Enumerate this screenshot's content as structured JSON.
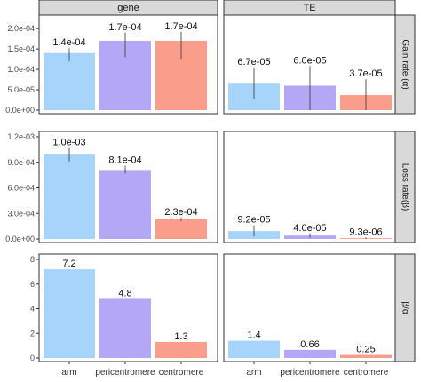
{
  "chart_data": {
    "type": "bar",
    "layout": "facet-grid",
    "columns": [
      "gene",
      "TE"
    ],
    "categories": [
      "arm",
      "pericentromere",
      "centromere"
    ],
    "colors": {
      "arm": "#a6d4fa",
      "pericentromere": "#b4a7f6",
      "centromere": "#fb9d8b"
    },
    "panel_background": "#ffffff",
    "strip_fill": "#d9d9d9",
    "grid": false,
    "legend": "none",
    "rows": [
      {
        "strip_label": "Gain rate (α)",
        "ylim": [
          0,
          0.00022
        ],
        "ticks": [
          0,
          5e-05,
          0.0001,
          0.00015,
          0.0002
        ],
        "tick_labels": [
          "0.0e+00",
          "5.0e-05",
          "1.0e-04",
          "1.5e-04",
          "2.0e-04"
        ],
        "series": [
          {
            "name": "gene",
            "values": [
              0.00014,
              0.00017,
              0.00017
            ],
            "error_low": [
              0.00012,
              0.00013,
              0.000126
            ],
            "error_high": [
              0.000152,
              0.00019,
              0.000192
            ],
            "labels": [
              "1.4e-04",
              "1.7e-04",
              "1.7e-04"
            ]
          },
          {
            "name": "TE",
            "values": [
              6.7e-05,
              6e-05,
              3.7e-05
            ],
            "error_low": [
              2.8e-05,
              0.0,
              0.0
            ],
            "error_high": [
              0.000105,
              0.000108,
              7.6e-05
            ],
            "labels": [
              "6.7e-05",
              "6.0e-05",
              "3.7e-05"
            ]
          }
        ]
      },
      {
        "strip_label": "Loss rate(β)",
        "ylim": [
          0,
          0.0012
        ],
        "ticks": [
          0,
          0.0003,
          0.0006,
          0.0009,
          0.0012
        ],
        "tick_labels": [
          "0.0e+00",
          "3.0e-04",
          "6.0e-04",
          "9.0e-04",
          "1.2e-03"
        ],
        "series": [
          {
            "name": "gene",
            "values": [
              0.001,
              0.00081,
              0.00023
            ],
            "error_low": [
              0.00091,
              0.00077,
              0.00021
            ],
            "error_high": [
              0.00107,
              0.00086,
              0.00025
            ],
            "labels": [
              "1.0e-03",
              "8.1e-04",
              "2.3e-04"
            ]
          },
          {
            "name": "TE",
            "values": [
              9.2e-05,
              4e-05,
              9.3e-06
            ],
            "error_low": [
              3e-05,
              1.5e-05,
              0.0
            ],
            "error_high": [
              0.00016,
              6.5e-05,
              1.8e-05
            ],
            "labels": [
              "9.2e-05",
              "4.0e-05",
              "9.3e-06"
            ]
          }
        ]
      },
      {
        "strip_label": "β/α",
        "ylim": [
          0,
          8
        ],
        "ticks": [
          0,
          2,
          4,
          6,
          8
        ],
        "tick_labels": [
          "0",
          "2",
          "4",
          "6",
          "8"
        ],
        "series": [
          {
            "name": "gene",
            "values": [
              7.2,
              4.8,
              1.3
            ],
            "labels": [
              "7.2",
              "4.8",
              "1.3"
            ]
          },
          {
            "name": "TE",
            "values": [
              1.4,
              0.66,
              0.25
            ],
            "labels": [
              "1.4",
              "0.66",
              "0.25"
            ]
          }
        ]
      }
    ]
  }
}
